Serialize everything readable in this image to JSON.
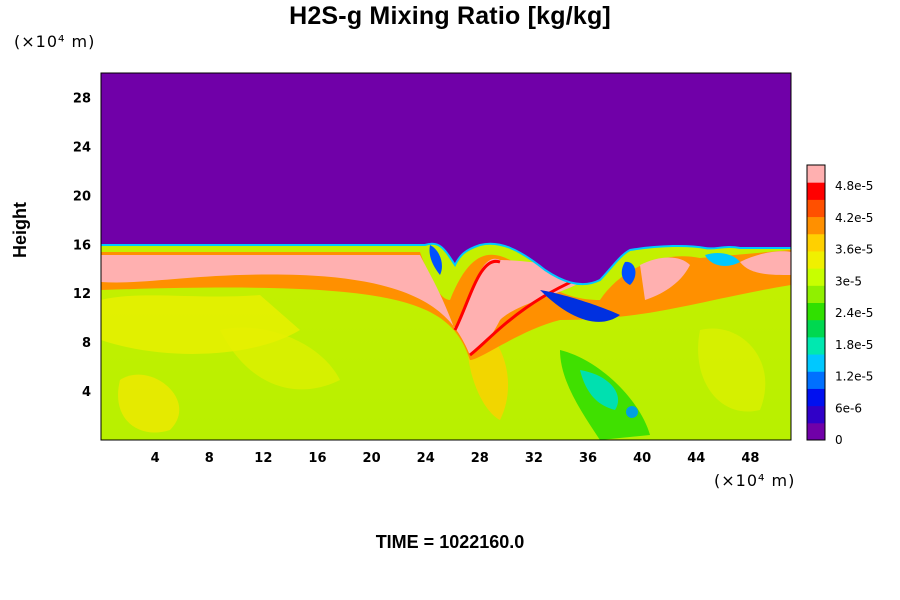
{
  "chart_data": {
    "type": "heatmap",
    "title": "H2S-g Mixing Ratio [kg/kg]",
    "xlabel": "",
    "ylabel": "Height",
    "x_unit_label": "(×10⁴ m)",
    "y_unit_label": "(×10⁴ m)",
    "xlim": [
      0,
      51
    ],
    "ylim": [
      0,
      30
    ],
    "x_ticks": [
      "4",
      "8",
      "12",
      "16",
      "20",
      "24",
      "28",
      "32",
      "36",
      "40",
      "44",
      "48"
    ],
    "x_tick_values": [
      4,
      8,
      12,
      16,
      20,
      24,
      28,
      32,
      36,
      40,
      44,
      48
    ],
    "y_ticks": [
      "4",
      "8",
      "12",
      "16",
      "20",
      "24",
      "28"
    ],
    "y_tick_values": [
      4,
      8,
      12,
      16,
      20,
      24,
      28
    ],
    "colorbar": {
      "min": 0,
      "max": 5.2e-05,
      "labels": [
        "0",
        "6e-6",
        "1.2e-5",
        "1.8e-5",
        "2.4e-5",
        "3e-5",
        "3.6e-5",
        "4.2e-5",
        "4.8e-5"
      ],
      "label_values": [
        0,
        6e-06,
        1.2e-05,
        1.8e-05,
        2.4e-05,
        3e-05,
        3.6e-05,
        4.2e-05,
        4.8e-05
      ],
      "colors": [
        "#7000a8",
        "#3000c8",
        "#0010f0",
        "#0070ff",
        "#00c8ff",
        "#00e8b0",
        "#00d850",
        "#30e000",
        "#90f000",
        "#c8ff00",
        "#f0f000",
        "#ffd000",
        "#ff9000",
        "#ff5000",
        "#ff0000",
        "#ffb0b0"
      ]
    },
    "field_description_values": {
      "upper_layer_value": 0,
      "lower_layer_typical_value": 3.3e-05,
      "tropopause_height": 15.5
    },
    "grid": false
  },
  "footer": {
    "time_text": "TIME = 1022160.0"
  }
}
